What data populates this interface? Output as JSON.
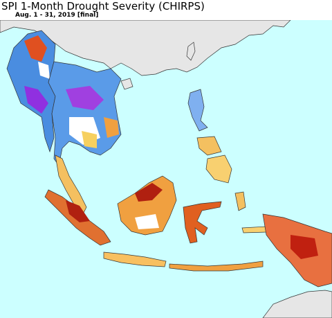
{
  "title": "SPI 1-Month Drought Severity (CHIRPS)",
  "subtitle": "Aug. 1 - 31, 2019 [final]"
}
